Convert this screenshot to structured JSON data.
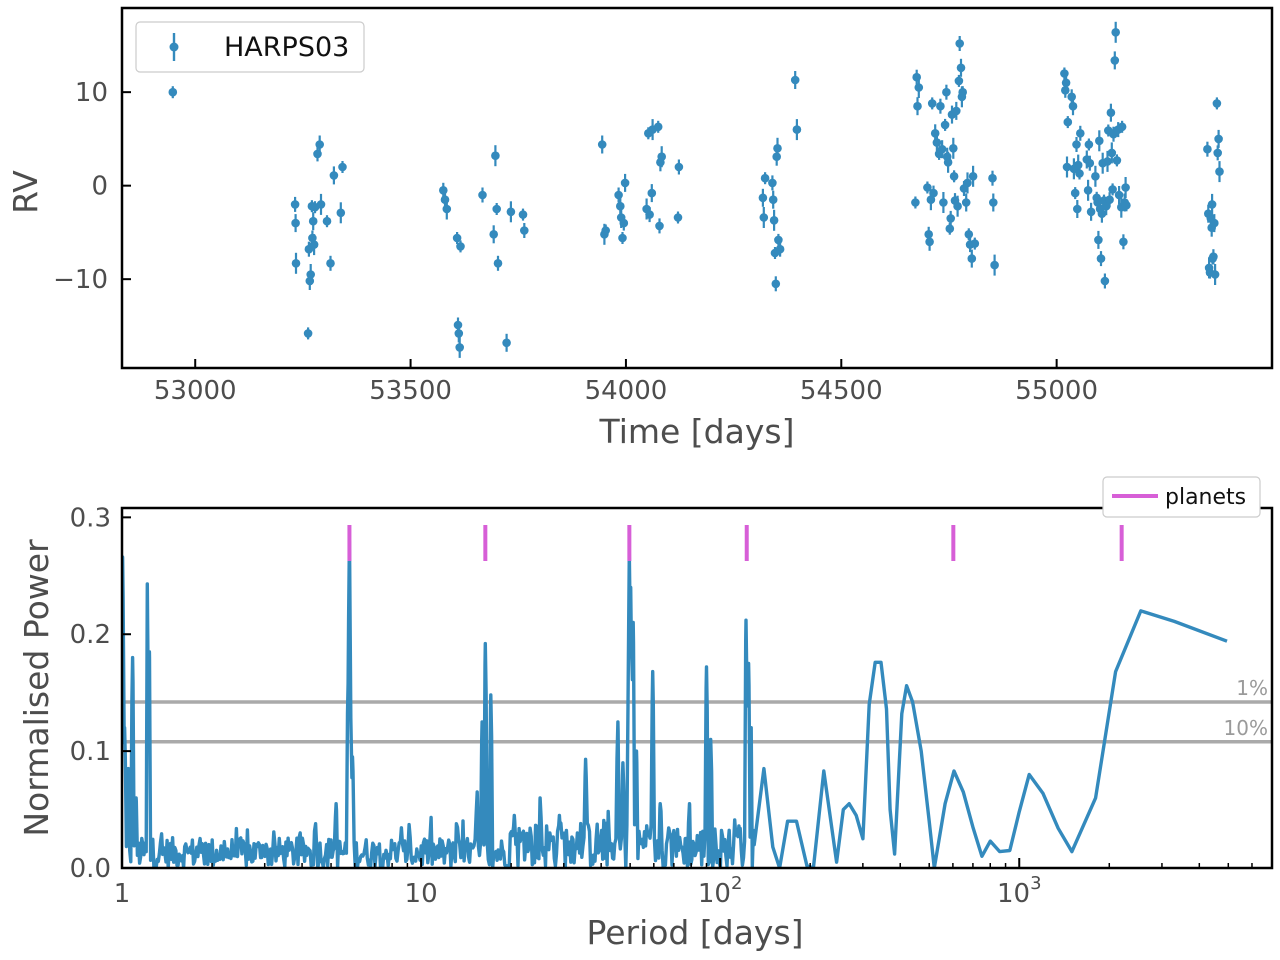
{
  "colors": {
    "series": "#348abd",
    "planets": "#d75fd7",
    "threshold": "#aaaaaa",
    "threshold_text": "#9a9a9a",
    "axis_text": "#4d4d4d"
  },
  "chart_data": [
    {
      "type": "scatter",
      "title": "",
      "xlabel": "Time [days]",
      "ylabel": "RV",
      "xlim": [
        52830,
        55500
      ],
      "ylim": [
        -19.5,
        19
      ],
      "xticks": [
        53000,
        53500,
        54000,
        54500,
        55000
      ],
      "xtick_labels": [
        "53000",
        "53500",
        "54000",
        "54500",
        "55000"
      ],
      "yticks": [
        -10,
        0,
        10
      ],
      "ytick_labels": [
        "−10",
        "0",
        "10"
      ],
      "legend": "top-left",
      "series": [
        {
          "name": "HARPS03",
          "points": [
            [
              52948,
              10.0
            ],
            [
              53232,
              -2.0
            ],
            [
              53233,
              -4.0
            ],
            [
              53234,
              -8.3
            ],
            [
              53262,
              -15.8
            ],
            [
              53264,
              -6.8
            ],
            [
              53266,
              -10.2
            ],
            [
              53268,
              -9.5
            ],
            [
              53271,
              -2.2
            ],
            [
              53272,
              -5.6
            ],
            [
              53274,
              -3.8
            ],
            [
              53276,
              -6.3
            ],
            [
              53278,
              -2.3
            ],
            [
              53284,
              3.4
            ],
            [
              53289,
              4.4
            ],
            [
              53292,
              -2.0
            ],
            [
              53306,
              -3.8
            ],
            [
              53314,
              -8.3
            ],
            [
              53322,
              1.1
            ],
            [
              53338,
              -2.9
            ],
            [
              53342,
              2.0
            ],
            [
              53576,
              -0.5
            ],
            [
              53580,
              -1.5
            ],
            [
              53584,
              -2.5
            ],
            [
              53608,
              -5.6
            ],
            [
              53610,
              -14.9
            ],
            [
              53612,
              -15.8
            ],
            [
              53614,
              -17.3
            ],
            [
              53616,
              -6.5
            ],
            [
              53667,
              -1.0
            ],
            [
              53693,
              -5.2
            ],
            [
              53697,
              3.2
            ],
            [
              53700,
              -2.5
            ],
            [
              53703,
              -8.3
            ],
            [
              53723,
              -16.8
            ],
            [
              53733,
              -2.8
            ],
            [
              53761,
              -3.1
            ],
            [
              53764,
              -4.8
            ],
            [
              53945,
              4.4
            ],
            [
              53950,
              -5.2
            ],
            [
              53953,
              -4.8
            ],
            [
              53983,
              -1.0
            ],
            [
              53987,
              -2.2
            ],
            [
              53989,
              -3.4
            ],
            [
              53992,
              -5.6
            ],
            [
              53995,
              -4.0
            ],
            [
              53998,
              0.3
            ],
            [
              54048,
              -2.5
            ],
            [
              54052,
              5.6
            ],
            [
              54055,
              -3.1
            ],
            [
              54060,
              -0.8
            ],
            [
              54062,
              6.0
            ],
            [
              54075,
              6.3
            ],
            [
              54078,
              -4.3
            ],
            [
              54080,
              2.5
            ],
            [
              54083,
              3.1
            ],
            [
              54121,
              -3.4
            ],
            [
              54123,
              2.0
            ],
            [
              54318,
              -1.3
            ],
            [
              54320,
              -3.4
            ],
            [
              54323,
              0.8
            ],
            [
              54340,
              0.3
            ],
            [
              54342,
              -1.5
            ],
            [
              54344,
              -3.7
            ],
            [
              54346,
              -7.2
            ],
            [
              54348,
              -10.5
            ],
            [
              54350,
              3.1
            ],
            [
              54352,
              4.0
            ],
            [
              54354,
              -5.8
            ],
            [
              54358,
              -6.8
            ],
            [
              54393,
              11.3
            ],
            [
              54397,
              6.0
            ],
            [
              54672,
              -1.8
            ],
            [
              54675,
              11.6
            ],
            [
              54677,
              8.5
            ],
            [
              54680,
              10.5
            ],
            [
              54700,
              -0.2
            ],
            [
              54703,
              -5.2
            ],
            [
              54705,
              -6.0
            ],
            [
              54708,
              -1.5
            ],
            [
              54711,
              8.8
            ],
            [
              54714,
              -0.8
            ],
            [
              54718,
              5.6
            ],
            [
              54722,
              4.6
            ],
            [
              54727,
              3.4
            ],
            [
              54730,
              8.5
            ],
            [
              54734,
              3.9
            ],
            [
              54737,
              -1.8
            ],
            [
              54741,
              6.5
            ],
            [
              54744,
              10.0
            ],
            [
              54746,
              3.1
            ],
            [
              54748,
              2.5
            ],
            [
              54752,
              -4.6
            ],
            [
              54754,
              -3.5
            ],
            [
              54757,
              7.6
            ],
            [
              54760,
              4.0
            ],
            [
              54762,
              1.0
            ],
            [
              54764,
              -1.6
            ],
            [
              54767,
              8.0
            ],
            [
              54770,
              -2.2
            ],
            [
              54773,
              11.2
            ],
            [
              54775,
              15.2
            ],
            [
              54778,
              12.6
            ],
            [
              54780,
              9.5
            ],
            [
              54782,
              10.0
            ],
            [
              54785,
              -0.3
            ],
            [
              54790,
              -1.8
            ],
            [
              54793,
              0.3
            ],
            [
              54796,
              -5.2
            ],
            [
              54799,
              -6.3
            ],
            [
              54803,
              -7.8
            ],
            [
              54806,
              1.0
            ],
            [
              54810,
              -6.2
            ],
            [
              54851,
              0.8
            ],
            [
              54853,
              -1.8
            ],
            [
              54856,
              -8.5
            ],
            [
              55018,
              12.0
            ],
            [
              55020,
              10.2
            ],
            [
              55022,
              11.0
            ],
            [
              55024,
              2.0
            ],
            [
              55026,
              6.8
            ],
            [
              55035,
              9.5
            ],
            [
              55038,
              8.5
            ],
            [
              55040,
              1.8
            ],
            [
              55043,
              -0.8
            ],
            [
              55046,
              4.4
            ],
            [
              55048,
              -2.5
            ],
            [
              55050,
              2.2
            ],
            [
              55053,
              1.3
            ],
            [
              55055,
              5.6
            ],
            [
              55070,
              2.8
            ],
            [
              55073,
              -0.5
            ],
            [
              55075,
              4.4
            ],
            [
              55077,
              2.4
            ],
            [
              55080,
              -2.8
            ],
            [
              55090,
              1.0
            ],
            [
              55093,
              -1.3
            ],
            [
              55095,
              -1.8
            ],
            [
              55097,
              -5.8
            ],
            [
              55099,
              4.8
            ],
            [
              55101,
              -2.5
            ],
            [
              55103,
              -7.8
            ],
            [
              55105,
              -3.0
            ],
            [
              55107,
              2.4
            ],
            [
              55110,
              -1.6
            ],
            [
              55112,
              -10.2
            ],
            [
              55115,
              -2.2
            ],
            [
              55118,
              2.6
            ],
            [
              55120,
              5.9
            ],
            [
              55123,
              -1.5
            ],
            [
              55126,
              7.8
            ],
            [
              55128,
              3.5
            ],
            [
              55130,
              -0.4
            ],
            [
              55132,
              5.5
            ],
            [
              55135,
              13.4
            ],
            [
              55137,
              16.4
            ],
            [
              55140,
              2.7
            ],
            [
              55143,
              6.0
            ],
            [
              55145,
              -1.0
            ],
            [
              55150,
              -2.3
            ],
            [
              55152,
              6.3
            ],
            [
              55155,
              -6.0
            ],
            [
              55158,
              -1.8
            ],
            [
              55160,
              -0.2
            ],
            [
              55162,
              -2.1
            ],
            [
              55350,
              3.9
            ],
            [
              55352,
              -3.0
            ],
            [
              55354,
              -8.8
            ],
            [
              55356,
              -9.3
            ],
            [
              55358,
              -3.5
            ],
            [
              55360,
              -4.5
            ],
            [
              55361,
              -2.0
            ],
            [
              55362,
              -7.8
            ],
            [
              55364,
              -7.6
            ],
            [
              55366,
              -4.0
            ],
            [
              55368,
              -9.5
            ],
            [
              55372,
              8.8
            ],
            [
              55374,
              3.5
            ],
            [
              55376,
              5.0
            ],
            [
              55378,
              1.5
            ]
          ]
        }
      ]
    },
    {
      "type": "line",
      "title": "",
      "xlabel": "Period [days]",
      "ylabel": "Normalised Power",
      "xscale": "log",
      "xlim": [
        1,
        7000
      ],
      "ylim": [
        0,
        0.308
      ],
      "xticks": [
        1,
        10,
        100,
        1000
      ],
      "xtick_labels": [
        {
          "base": "1",
          "exp": ""
        },
        {
          "base": "10",
          "exp": ""
        },
        {
          "base": "10",
          "exp": "2"
        },
        {
          "base": "10",
          "exp": "3"
        }
      ],
      "yticks": [
        0,
        0.1,
        0.2,
        0.3
      ],
      "ytick_labels": [
        "0.0",
        "0.1",
        "0.2",
        "0.3"
      ],
      "legend": "top-right",
      "planets": {
        "label": "planets",
        "periods": [
          5.76,
          16.4,
          49.7,
          122.7,
          602,
          2200
        ]
      },
      "thresholds": [
        {
          "label": "1%",
          "value": 0.142
        },
        {
          "label": "10%",
          "value": 0.108
        }
      ],
      "peaks": [
        [
          1.005,
          0.266
        ],
        [
          1.02,
          0.12
        ],
        [
          1.05,
          0.085
        ],
        [
          1.085,
          0.18
        ],
        [
          1.115,
          0.06
        ],
        [
          1.215,
          0.243
        ],
        [
          1.235,
          0.185
        ],
        [
          5.7,
          0.158
        ],
        [
          5.76,
          0.28
        ],
        [
          5.82,
          0.13
        ],
        [
          5.9,
          0.095
        ],
        [
          5.2,
          0.055
        ],
        [
          16.0,
          0.125
        ],
        [
          16.4,
          0.192
        ],
        [
          17.1,
          0.148
        ],
        [
          15.4,
          0.065
        ],
        [
          20.5,
          0.045
        ],
        [
          25.0,
          0.06
        ],
        [
          29.0,
          0.045
        ],
        [
          35.5,
          0.093
        ],
        [
          45.5,
          0.125
        ],
        [
          47.3,
          0.09
        ],
        [
          49.2,
          0.14
        ],
        [
          49.7,
          0.27
        ],
        [
          50.2,
          0.24
        ],
        [
          51.2,
          0.21
        ],
        [
          52.5,
          0.1
        ],
        [
          59.5,
          0.168
        ],
        [
          63.0,
          0.055
        ],
        [
          70.0,
          0.032
        ],
        [
          79.0,
          0.055
        ],
        [
          90.0,
          0.172
        ],
        [
          93.0,
          0.11
        ],
        [
          115.5,
          0.036
        ],
        [
          122.0,
          0.212
        ],
        [
          124.5,
          0.175
        ],
        [
          127.0,
          0.12
        ]
      ],
      "smooth_points": [
        [
          130,
          0.02
        ],
        [
          140,
          0.085
        ],
        [
          150,
          0.018
        ],
        [
          158,
          0.0
        ],
        [
          168,
          0.04
        ],
        [
          180,
          0.04
        ],
        [
          195,
          0.002
        ],
        [
          205,
          0.0
        ],
        [
          222,
          0.083
        ],
        [
          245,
          0.005
        ],
        [
          258,
          0.05
        ],
        [
          270,
          0.055
        ],
        [
          285,
          0.045
        ],
        [
          300,
          0.025
        ],
        [
          315,
          0.14
        ],
        [
          330,
          0.176
        ],
        [
          345,
          0.176
        ],
        [
          360,
          0.136
        ],
        [
          370,
          0.05
        ],
        [
          383,
          0.012
        ],
        [
          405,
          0.132
        ],
        [
          420,
          0.156
        ],
        [
          440,
          0.142
        ],
        [
          470,
          0.1
        ],
        [
          500,
          0.04
        ],
        [
          520,
          0.0
        ],
        [
          565,
          0.055
        ],
        [
          605,
          0.083
        ],
        [
          650,
          0.065
        ],
        [
          700,
          0.035
        ],
        [
          750,
          0.01
        ],
        [
          800,
          0.023
        ],
        [
          860,
          0.014
        ],
        [
          930,
          0.015
        ],
        [
          1000,
          0.048
        ],
        [
          1080,
          0.08
        ],
        [
          1200,
          0.064
        ],
        [
          1350,
          0.034
        ],
        [
          1500,
          0.014
        ],
        [
          1800,
          0.06
        ],
        [
          2100,
          0.168
        ],
        [
          2550,
          0.22
        ],
        [
          3300,
          0.211
        ],
        [
          4950,
          0.194
        ]
      ]
    }
  ]
}
